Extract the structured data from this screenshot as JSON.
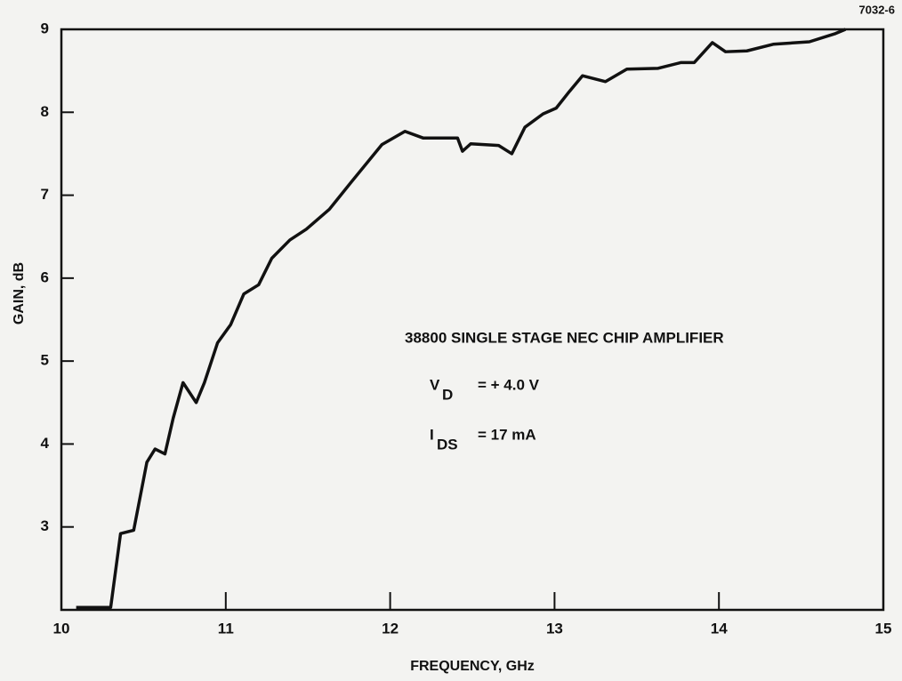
{
  "chart_data": {
    "type": "line",
    "figure_id": "7032-6",
    "xlabel": "FREQUENCY, GHz",
    "ylabel": "GAIN, dB",
    "xlim": [
      10,
      15
    ],
    "xticks": [
      10,
      11,
      12,
      13,
      14,
      15
    ],
    "ylim": [
      2,
      9
    ],
    "yticks": [
      3,
      4,
      5,
      6,
      7,
      8,
      9
    ],
    "annotation": {
      "title": "38800 SINGLE STAGE NEC CHIP AMPLIFIER",
      "lines": [
        {
          "symbol": "V",
          "subscript": "D",
          "text": "=  + 4.0 V"
        },
        {
          "symbol": "I",
          "subscript": "DS",
          "text": "=  17 mA"
        }
      ]
    },
    "series": [
      {
        "color": "#111111",
        "x": [
          10.09,
          10.3,
          10.36,
          10.44,
          10.52,
          10.57,
          10.63,
          10.68,
          10.74,
          10.82,
          10.87,
          10.95,
          11.03,
          11.11,
          11.2,
          11.28,
          11.39,
          11.49,
          11.63,
          11.76,
          11.95,
          12.09,
          12.2,
          12.33,
          12.41,
          12.44,
          12.49,
          12.66,
          12.74,
          12.82,
          12.93,
          13.01,
          13.09,
          13.17,
          13.31,
          13.44,
          13.63,
          13.77,
          13.85,
          13.96,
          14.04,
          14.17,
          14.33,
          14.55,
          14.71,
          14.77
        ],
        "values": [
          2.03,
          2.03,
          2.92,
          2.96,
          3.78,
          3.94,
          3.88,
          4.31,
          4.74,
          4.5,
          4.74,
          5.22,
          5.44,
          5.81,
          5.92,
          6.24,
          6.46,
          6.59,
          6.83,
          7.15,
          7.61,
          7.77,
          7.69,
          7.69,
          7.69,
          7.53,
          7.62,
          7.6,
          7.5,
          7.82,
          7.98,
          8.05,
          8.25,
          8.44,
          8.37,
          8.52,
          8.53,
          8.6,
          8.6,
          8.84,
          8.73,
          8.74,
          8.82,
          8.85,
          8.95,
          9.0
        ]
      }
    ]
  }
}
